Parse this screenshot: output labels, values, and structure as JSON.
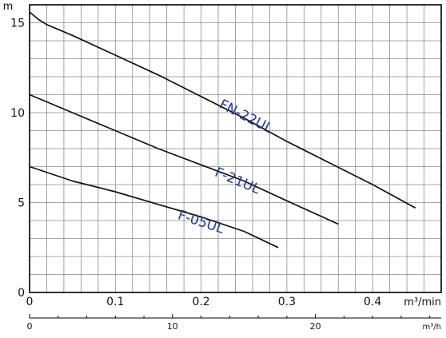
{
  "chart_data": {
    "type": "line",
    "xlabel": "m³/min",
    "x2label": "m³/h",
    "ylabel": "m",
    "xlim": [
      0,
      0.48
    ],
    "ylim": [
      0,
      16
    ],
    "x2lim": [
      0,
      28.8
    ],
    "grid": true,
    "x_ticks": [
      0,
      0.1,
      0.2,
      0.3,
      0.4
    ],
    "x_tick_labels": [
      "0",
      "0.1",
      "0.2",
      "0.3",
      "0.4"
    ],
    "x2_ticks": [
      0,
      10,
      20
    ],
    "x2_tick_labels": [
      "0",
      "10",
      "20"
    ],
    "y_ticks": [
      0,
      5,
      10,
      15
    ],
    "y_tick_labels": [
      "0",
      "5",
      "10",
      "15"
    ],
    "series": [
      {
        "name": "FN-22UL",
        "x": [
          0,
          0.01,
          0.02,
          0.05,
          0.1,
          0.15,
          0.2,
          0.25,
          0.3,
          0.35,
          0.4,
          0.45
        ],
        "y": [
          15.6,
          15.2,
          14.9,
          14.3,
          13.2,
          12.1,
          10.9,
          9.7,
          8.4,
          7.2,
          6.0,
          4.7
        ]
      },
      {
        "name": "F-21UL",
        "x": [
          0,
          0.02,
          0.05,
          0.1,
          0.15,
          0.2,
          0.25,
          0.3,
          0.36
        ],
        "y": [
          11.0,
          10.6,
          10.0,
          9.0,
          8.0,
          7.1,
          6.2,
          5.1,
          3.8
        ]
      },
      {
        "name": "F-05UL",
        "x": [
          0,
          0.05,
          0.1,
          0.15,
          0.2,
          0.25,
          0.29
        ],
        "y": [
          7.0,
          6.2,
          5.6,
          4.9,
          4.2,
          3.4,
          2.5
        ]
      }
    ],
    "series_labels": [
      {
        "text": "FN-22UL",
        "x": 0.22,
        "y": 10.3
      },
      {
        "text": "F-21UL",
        "x": 0.215,
        "y": 6.5
      },
      {
        "text": "F-05UL",
        "x": 0.172,
        "y": 4.1
      }
    ]
  }
}
